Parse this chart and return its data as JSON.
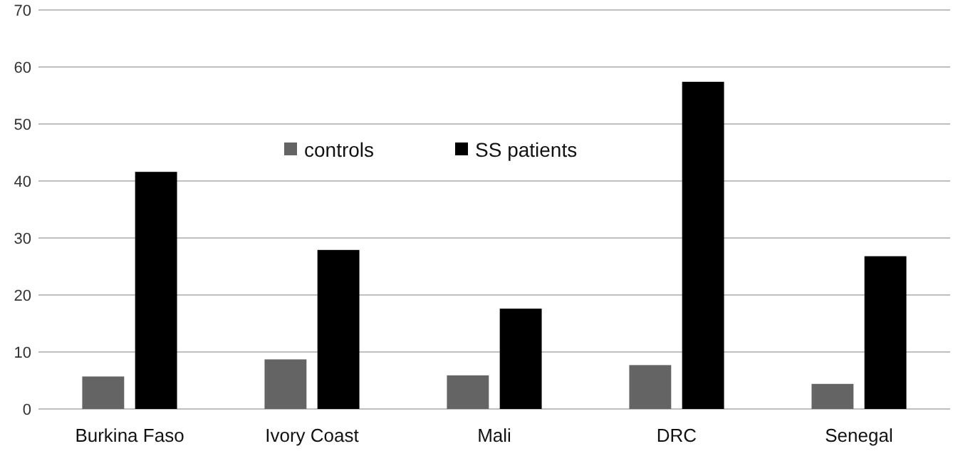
{
  "chart_data": {
    "type": "bar",
    "categories": [
      "Burkina Faso",
      "Ivory Coast",
      "Mali",
      "DRC",
      "Senegal"
    ],
    "series": [
      {
        "name": "controls",
        "color": "#646464",
        "values": [
          5.7,
          8.7,
          5.9,
          7.7,
          4.4
        ]
      },
      {
        "name": "SS patients",
        "color": "#000000",
        "values": [
          41.6,
          27.9,
          17.6,
          57.4,
          26.8
        ]
      }
    ],
    "ylim": [
      0,
      70
    ],
    "yticks": [
      0,
      10,
      20,
      30,
      40,
      50,
      60,
      70
    ],
    "grid": "y",
    "legend": "top"
  }
}
